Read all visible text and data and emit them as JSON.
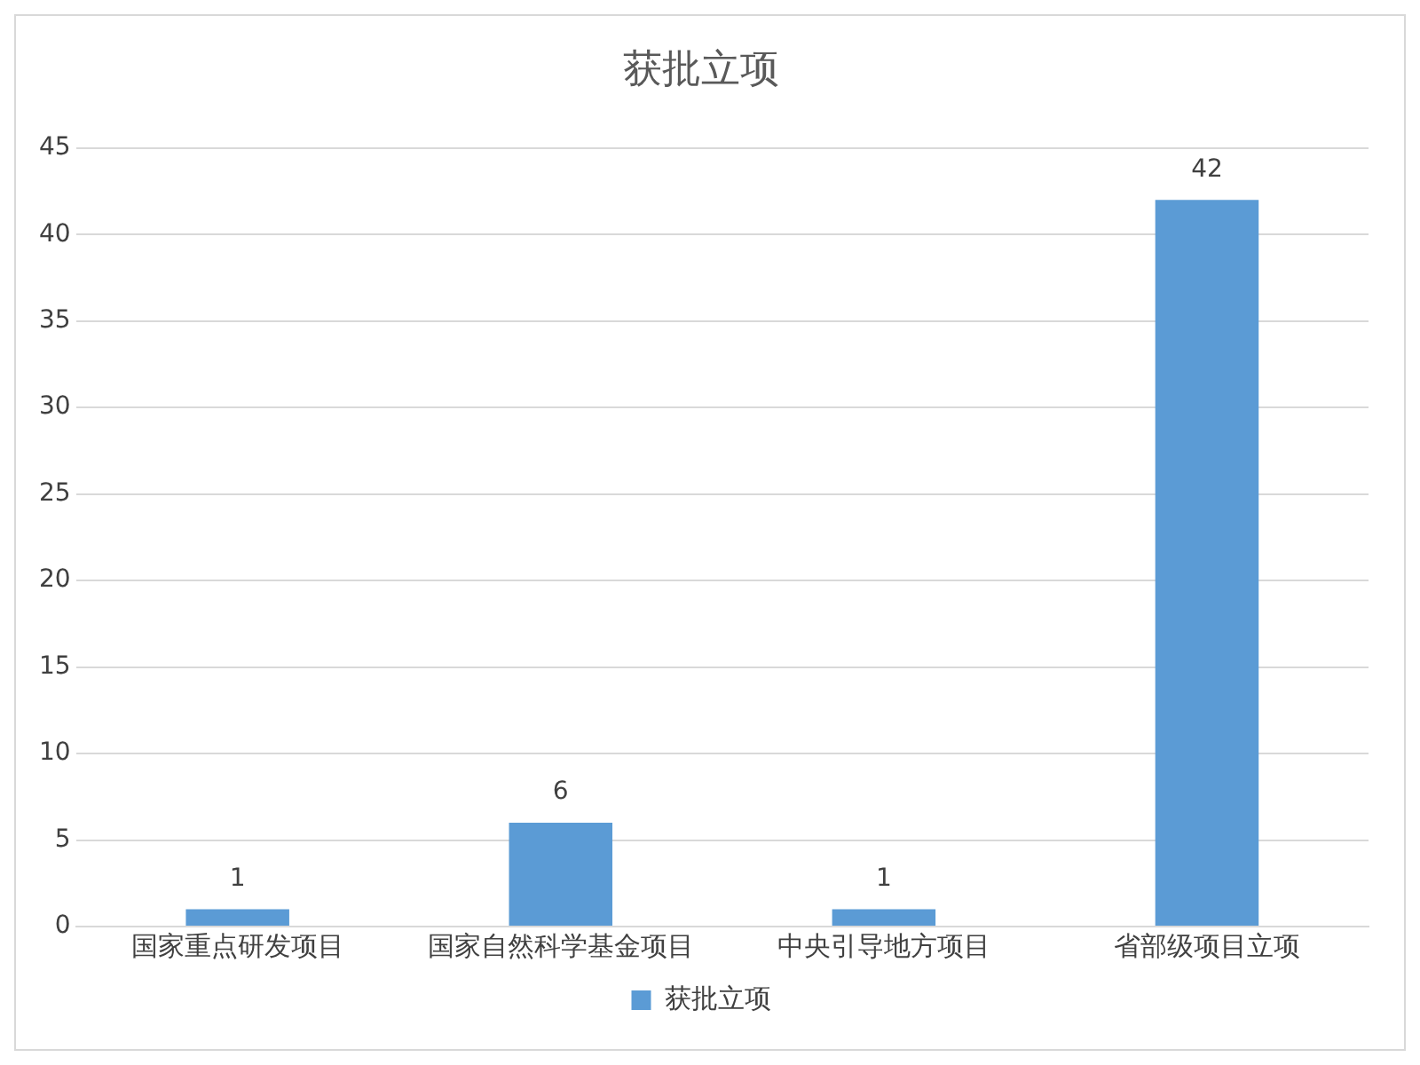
{
  "chart_data": {
    "type": "bar",
    "title": "获批立项",
    "categories": [
      "国家重点研发项目",
      "国家自然科学基金项目",
      "中央引导地方项目",
      "省部级项目立项"
    ],
    "series": [
      {
        "name": "获批立项",
        "color": "#5b9bd5",
        "values": [
          1,
          6,
          1,
          42
        ]
      }
    ],
    "ylim": [
      0,
      45
    ],
    "yticks": [
      0,
      5,
      10,
      15,
      20,
      25,
      30,
      35,
      40,
      45
    ],
    "grid": "y",
    "legend": "bottom",
    "data_labels": true
  }
}
